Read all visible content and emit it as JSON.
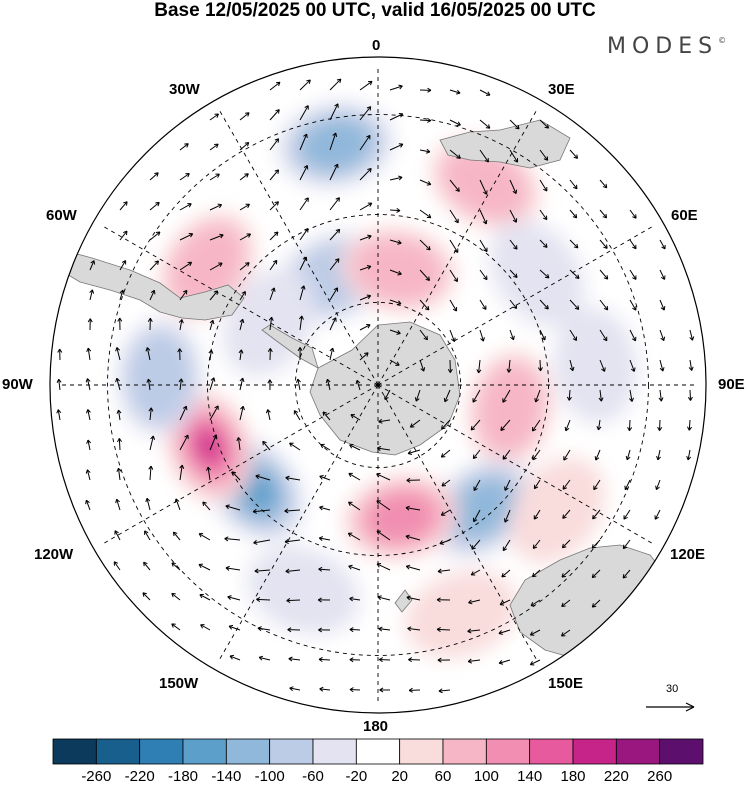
{
  "title": "Base 12/05/2025 00 UTC, valid 16/05/2025 00 UTC",
  "brand": "MODES",
  "brand_mark": "©",
  "longitude_labels": {
    "lon_0": "0",
    "lon_30e": "30E",
    "lon_60e": "60E",
    "lon_90e": "90E",
    "lon_120e": "120E",
    "lon_150e": "150E",
    "lon_180": "180",
    "lon_150w": "150W",
    "lon_120w": "120W",
    "lon_90w": "90W",
    "lon_60w": "60W",
    "lon_30w": "30W"
  },
  "reference_vector": {
    "value": "30"
  },
  "colorbar": {
    "colors": [
      "#0b3a5c",
      "#185f8e",
      "#2f7fb5",
      "#5c9fcb",
      "#90b8da",
      "#bccbe6",
      "#e3e3f1",
      "#ffffff",
      "#f9dcdc",
      "#f7b6c6",
      "#f18eb1",
      "#e85a9e",
      "#c7248a",
      "#9b1780",
      "#5d0f6e"
    ],
    "tick_labels": [
      "-260",
      "-220",
      "-180",
      "-140",
      "-100",
      "-60",
      "-20",
      "20",
      "60",
      "100",
      "140",
      "180",
      "220",
      "260"
    ]
  },
  "map": {
    "projection": "south polar stereographic",
    "land_color": "#d9d9d9",
    "anomalies": [
      {
        "lon": -10,
        "lat": -35,
        "level": -3
      },
      {
        "lon": 28,
        "lat": -38,
        "level": 2
      },
      {
        "lon": -55,
        "lat": -42,
        "level": 2
      },
      {
        "lon": -22,
        "lat": -62,
        "level": -2
      },
      {
        "lon": 10,
        "lat": -62,
        "level": 2
      },
      {
        "lon": 55,
        "lat": -45,
        "level": -1
      },
      {
        "lon": 85,
        "lat": -40,
        "level": -1
      },
      {
        "lon": 100,
        "lat": -58,
        "level": 2
      },
      {
        "lon": 140,
        "lat": -52,
        "level": -3
      },
      {
        "lon": 170,
        "lat": -58,
        "level": 3
      },
      {
        "lon": -130,
        "lat": -52,
        "level": -4
      },
      {
        "lon": -110,
        "lat": -48,
        "level": 5
      },
      {
        "lon": -88,
        "lat": -40,
        "level": -2
      },
      {
        "lon": 125,
        "lat": -40,
        "level": 1
      },
      {
        "lon": 160,
        "lat": -35,
        "level": 1
      },
      {
        "lon": -160,
        "lat": -40,
        "level": -1
      },
      {
        "lon": -60,
        "lat": -60,
        "level": -1
      }
    ]
  }
}
